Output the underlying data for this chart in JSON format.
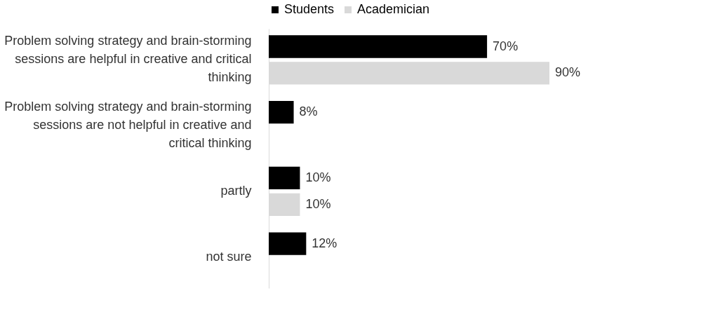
{
  "chart_data": {
    "type": "bar",
    "orientation": "horizontal",
    "legend": "top",
    "categories": [
      "Problem solving strategy and brain-storming sessions are helpful in creative and critical thinking",
      "Problem solving strategy and brain-storming sessions are not helpful in creative and critical thinking",
      "partly",
      "not sure"
    ],
    "series": [
      {
        "name": "Students",
        "color": "#000000",
        "values": [
          70,
          8,
          10,
          12
        ],
        "value_labels": [
          "70%",
          "8%",
          "10%",
          "12%"
        ]
      },
      {
        "name": "Academician",
        "color": "#d9d9d9",
        "values": [
          90,
          null,
          10,
          null
        ],
        "value_labels": [
          "90%",
          null,
          "10%",
          null
        ]
      }
    ]
  }
}
